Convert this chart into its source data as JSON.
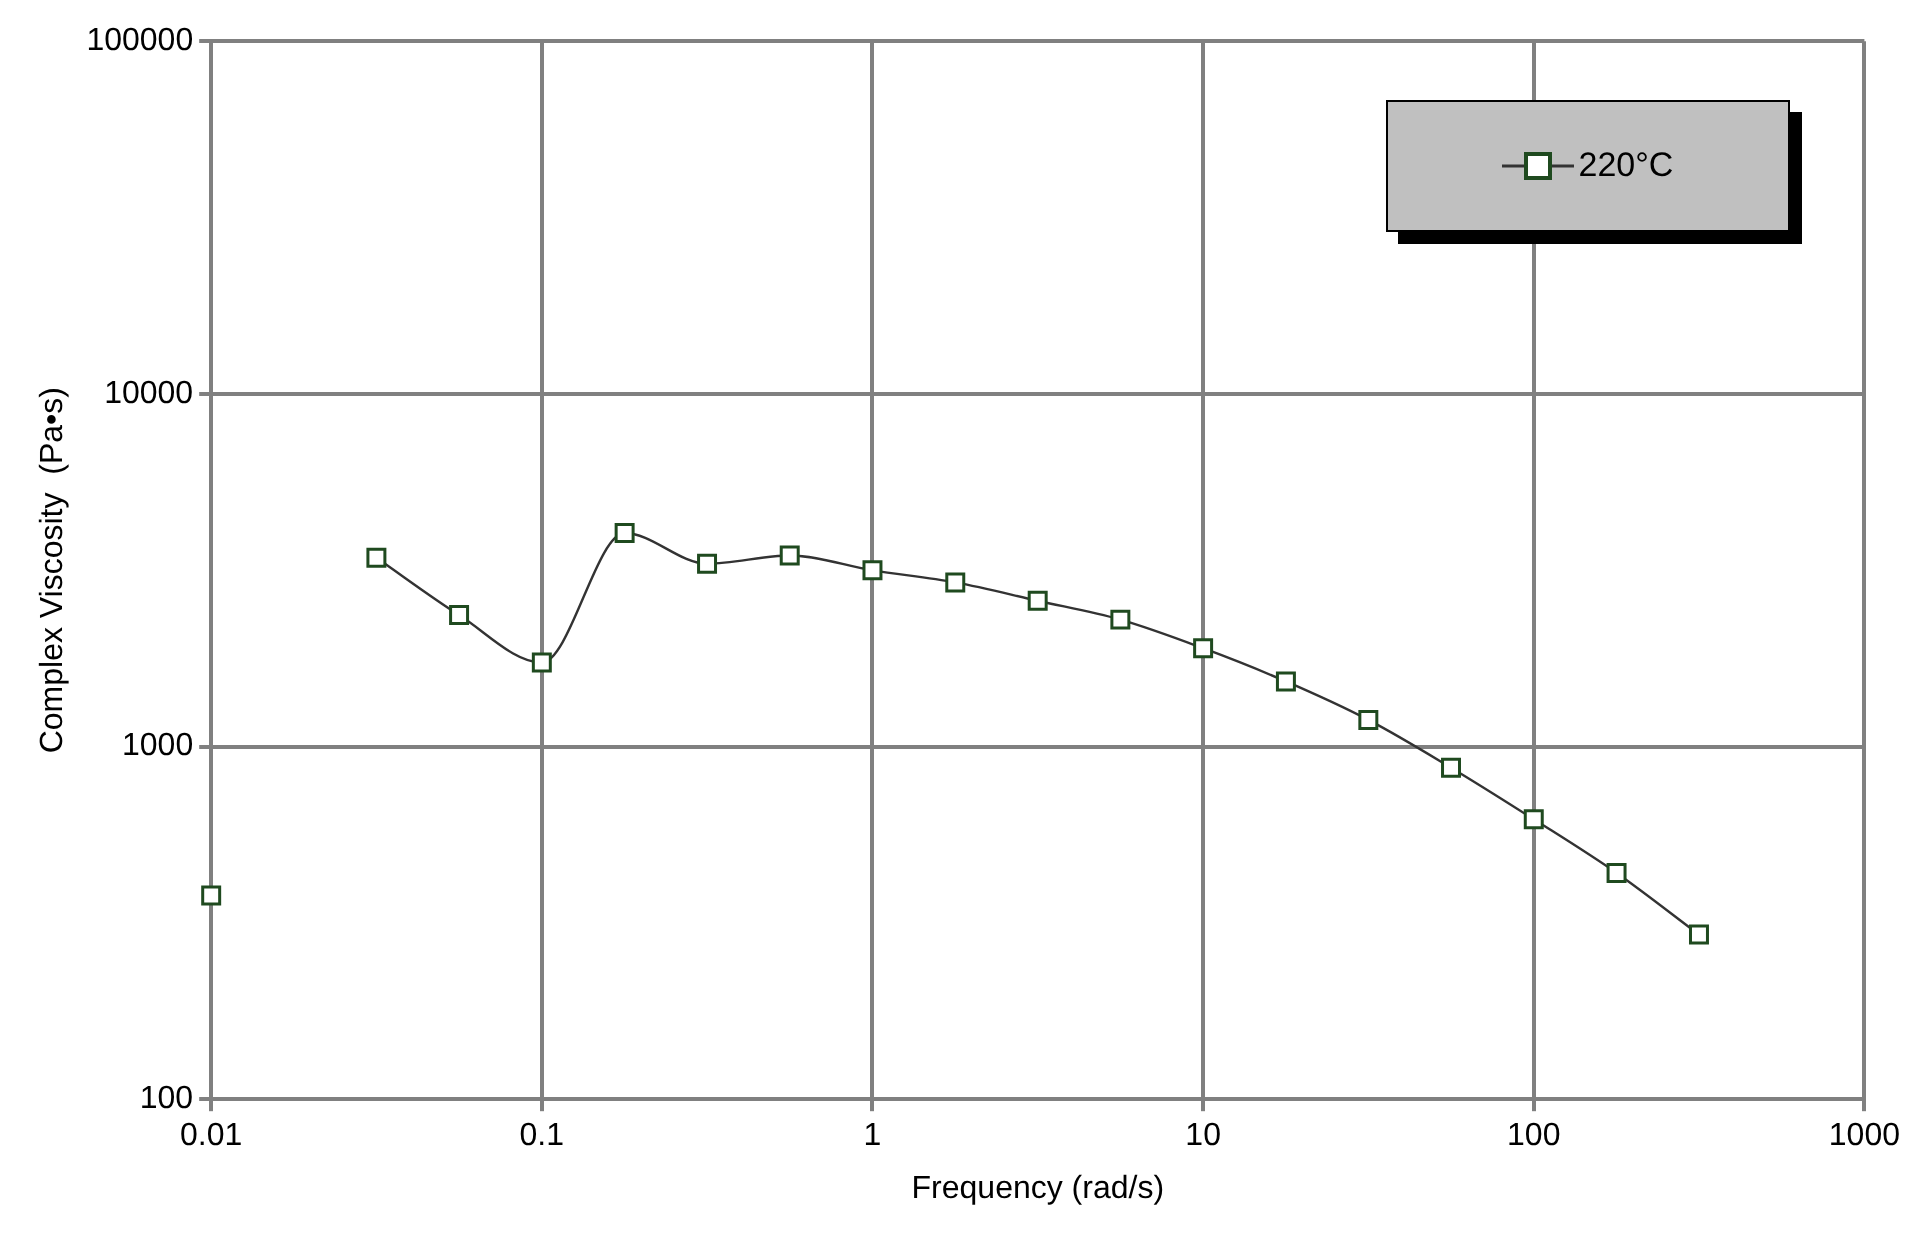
{
  "chart_data": {
    "type": "line",
    "xlabel": "Frequency (rad/s)",
    "ylabel": "Complex Viscosity  (Pa•s)",
    "log": "xy",
    "xlim": [
      0.01,
      1000
    ],
    "xticks": [
      0.01,
      0.1,
      1,
      10,
      100,
      1000
    ],
    "ylim": [
      100,
      100000
    ],
    "yticks": [
      100,
      1000,
      10000,
      100000
    ],
    "grid": true,
    "legend": "top right",
    "marker": "square",
    "line_style": "solid",
    "series": [
      {
        "type": "scatter",
        "color": "#1f4a1f",
        "x": [
          0.01
        ],
        "values": [
          378
        ]
      },
      {
        "name": "220°C",
        "color": "#1f4a1f",
        "x": [
          0.0316,
          0.0562,
          0.1,
          0.178,
          0.316,
          0.562,
          1,
          1.78,
          3.16,
          5.62,
          10,
          17.8,
          31.6,
          56.2,
          100,
          178,
          316
        ],
        "values": [
          3430,
          2360,
          1730,
          4030,
          3300,
          3480,
          3160,
          2920,
          2590,
          2290,
          1900,
          1530,
          1190,
          871,
          622,
          438,
          293
        ]
      }
    ]
  }
}
